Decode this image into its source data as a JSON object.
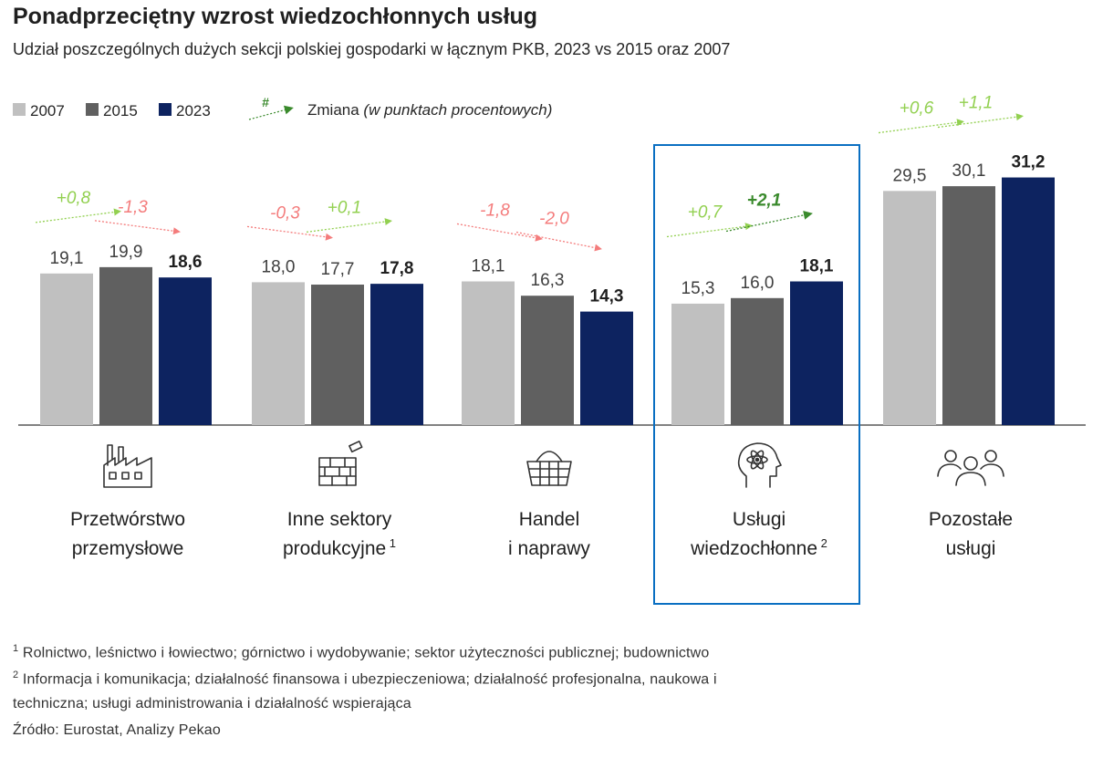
{
  "title": "Ponadprzeciętny wzrost wiedzochłonnych usług",
  "subtitle": "Udział poszczególnych dużych sekcji polskiej gospodarki w łącznym PKB, 2023 vs 2015 oraz 2007",
  "legend": {
    "change_symbol": "#",
    "change_label": "Zmiana",
    "change_unit": "(w punktach procentowych)"
  },
  "colors": {
    "2007": "#c0c0c0",
    "2015": "#606060",
    "2023": "#0d2360",
    "positive": "#92d050",
    "positive_strong": "#3a8a2c",
    "negative": "#f47c7c",
    "negative_strong": "#c00000",
    "highlight": "#0a6fc2"
  },
  "chart_data": {
    "type": "bar",
    "title": "Ponadprzeciętny wzrost wiedzochłonnych usług",
    "ylabel": "",
    "ylim": [
      0,
      33
    ],
    "grid": false,
    "legend_position": "top-left",
    "categories": [
      {
        "label": "Przetwórstwo przemysłowe",
        "lines": [
          "Przetwórstwo",
          "przemysłowe"
        ],
        "sup": "",
        "icon": "factory-icon"
      },
      {
        "label": "Inne sektory produkcyjne",
        "lines": [
          "Inne sektory",
          "produkcyjne"
        ],
        "sup": "1",
        "icon": "brick-wall-icon"
      },
      {
        "label": "Handel i naprawy",
        "lines": [
          "Handel",
          "i naprawy"
        ],
        "sup": "",
        "icon": "basket-icon"
      },
      {
        "label": "Usługi wiedzochłonne",
        "lines": [
          "Usługi",
          "wiedzochłonne"
        ],
        "sup": "2",
        "icon": "brain-atom-icon",
        "highlighted": true
      },
      {
        "label": "Pozostałe usługi",
        "lines": [
          "Pozostałe",
          "usługi"
        ],
        "sup": "",
        "icon": "people-icon"
      }
    ],
    "series": [
      {
        "name": "2007",
        "values": [
          19.1,
          18.0,
          18.1,
          15.3,
          29.5
        ],
        "labels": [
          "19,1",
          "18,0",
          "18,1",
          "15,3",
          "29,5"
        ]
      },
      {
        "name": "2015",
        "values": [
          19.9,
          17.7,
          16.3,
          16.0,
          30.1
        ],
        "labels": [
          "19,9",
          "17,7",
          "16,3",
          "16,0",
          "30,1"
        ]
      },
      {
        "name": "2023",
        "values": [
          18.6,
          17.8,
          14.3,
          18.1,
          31.2
        ],
        "labels": [
          "18,6",
          "17,8",
          "14,3",
          "18,1",
          "31,2"
        ]
      }
    ],
    "changes": [
      {
        "period": "2007-2015",
        "values": [
          0.8,
          -0.3,
          -1.8,
          0.7,
          0.6
        ],
        "labels": [
          "+0,8",
          "-0,3",
          "-1,8",
          "+0,7",
          "+0,6"
        ]
      },
      {
        "period": "2015-2023",
        "values": [
          -1.3,
          0.1,
          -2.0,
          2.1,
          1.1
        ],
        "labels": [
          "-1,3",
          "+0,1",
          "-2,0",
          "+2,1",
          "+1,1"
        ]
      }
    ]
  },
  "footnotes": [
    {
      "sup": "1",
      "text": "Rolnictwo, leśnictwo i łowiectwo; górnictwo i wydobywanie; sektor użyteczności publicznej; budownictwo"
    },
    {
      "sup": "2",
      "text": "Informacja i komunikacja; działalność finansowa i ubezpieczeniowa; działalność profesjonalna, naukowa i"
    },
    {
      "sup": "",
      "text": "techniczna; usługi administrowania i działalność wspierająca"
    },
    {
      "sup": "",
      "text": "Źródło: Eurostat, Analizy Pekao"
    }
  ]
}
